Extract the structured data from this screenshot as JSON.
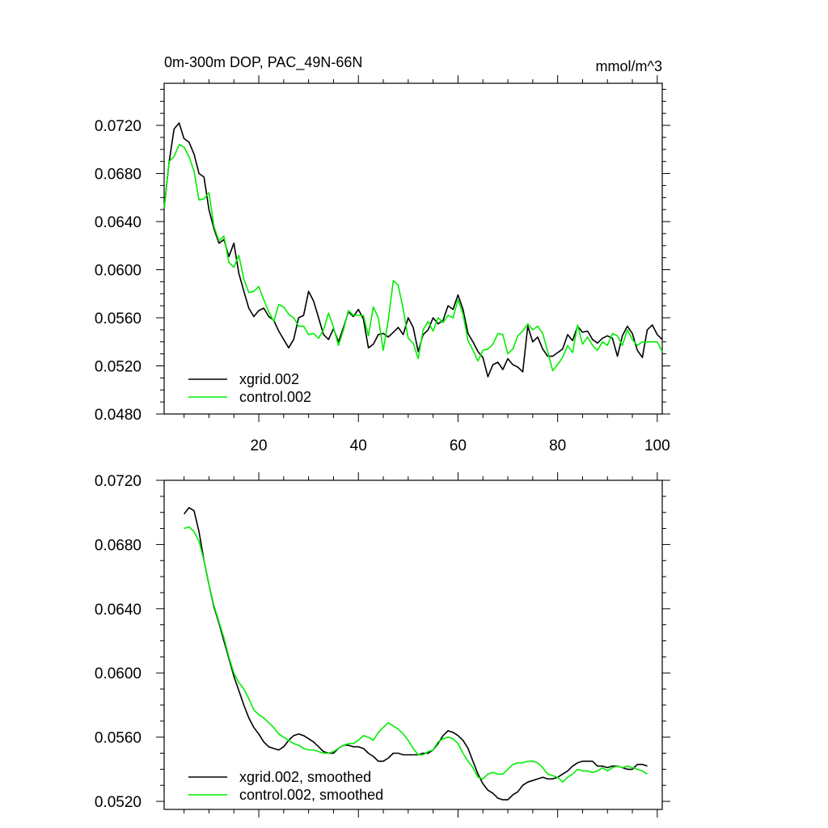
{
  "chart_data": [
    {
      "type": "line",
      "title": "0m-300m DOP, PAC_49N-66N",
      "units": "mmol/m^3",
      "xlim": [
        1,
        101
      ],
      "ylim": [
        0.048,
        0.0755
      ],
      "x_ticks": [
        20,
        40,
        60,
        80,
        100
      ],
      "x_tick_labels": [
        "20",
        "40",
        "60",
        "80",
        "100"
      ],
      "y_ticks": [
        0.048,
        0.052,
        0.056,
        0.06,
        0.064,
        0.068,
        0.072
      ],
      "y_tick_labels": [
        "0.0480",
        "0.0520",
        "0.0560",
        "0.0600",
        "0.0640",
        "0.0680",
        "0.0720"
      ],
      "legend_position": "bottom-left",
      "series": [
        {
          "name": "xgrid.002",
          "color": "#000000",
          "x": [
            1,
            2,
            3,
            4,
            5,
            6,
            7,
            8,
            9,
            10,
            11,
            12,
            13,
            14,
            15,
            16,
            17,
            18,
            19,
            20,
            21,
            22,
            23,
            24,
            25,
            26,
            27,
            28,
            29,
            30,
            31,
            32,
            33,
            34,
            35,
            36,
            37,
            38,
            39,
            40,
            41,
            42,
            43,
            44,
            45,
            46,
            47,
            48,
            49,
            50,
            51,
            52,
            53,
            54,
            55,
            56,
            57,
            58,
            59,
            60,
            61,
            62,
            63,
            64,
            65,
            66,
            67,
            68,
            69,
            70,
            71,
            72,
            73,
            74,
            75,
            76,
            77,
            78,
            79,
            80,
            81,
            82,
            83,
            84,
            85,
            86,
            87,
            88,
            89,
            90,
            91,
            92,
            93,
            94,
            95,
            96,
            97,
            98,
            99,
            100,
            101
          ],
          "values": [
            0.0651,
            0.069,
            0.0717,
            0.0722,
            0.0709,
            0.0706,
            0.0696,
            0.068,
            0.0677,
            0.065,
            0.0634,
            0.0622,
            0.0625,
            0.0611,
            0.0622,
            0.0597,
            0.0582,
            0.0568,
            0.0561,
            0.0566,
            0.0568,
            0.0561,
            0.0558,
            0.0549,
            0.0542,
            0.0535,
            0.0542,
            0.056,
            0.0562,
            0.0582,
            0.0574,
            0.056,
            0.0546,
            0.0542,
            0.0551,
            0.054,
            0.0552,
            0.0565,
            0.0561,
            0.0567,
            0.0559,
            0.0535,
            0.0538,
            0.0546,
            0.0547,
            0.0544,
            0.0548,
            0.0552,
            0.0546,
            0.056,
            0.0552,
            0.0532,
            0.0546,
            0.055,
            0.056,
            0.0555,
            0.0558,
            0.057,
            0.0567,
            0.0579,
            0.0567,
            0.0547,
            0.054,
            0.0532,
            0.0527,
            0.0511,
            0.0521,
            0.0523,
            0.0517,
            0.0526,
            0.0521,
            0.0519,
            0.0515,
            0.0553,
            0.054,
            0.0544,
            0.0534,
            0.0528,
            0.0528,
            0.0531,
            0.0534,
            0.0546,
            0.0541,
            0.0553,
            0.0548,
            0.0549,
            0.0542,
            0.0539,
            0.0543,
            0.0545,
            0.0543,
            0.0528,
            0.0545,
            0.0553,
            0.0547,
            0.0533,
            0.0527,
            0.055,
            0.0554,
            0.0546,
            0.0542
          ]
        },
        {
          "name": "control.002",
          "color": "#00ee00",
          "x": [
            1,
            2,
            3,
            4,
            5,
            6,
            7,
            8,
            9,
            10,
            11,
            12,
            13,
            14,
            15,
            16,
            17,
            18,
            19,
            20,
            21,
            22,
            23,
            24,
            25,
            26,
            27,
            28,
            29,
            30,
            31,
            32,
            33,
            34,
            35,
            36,
            37,
            38,
            39,
            40,
            41,
            42,
            43,
            44,
            45,
            46,
            47,
            48,
            49,
            50,
            51,
            52,
            53,
            54,
            55,
            56,
            57,
            58,
            59,
            60,
            61,
            62,
            63,
            64,
            65,
            66,
            67,
            68,
            69,
            70,
            71,
            72,
            73,
            74,
            75,
            76,
            77,
            78,
            79,
            80,
            81,
            82,
            83,
            84,
            85,
            86,
            87,
            88,
            89,
            90,
            91,
            92,
            93,
            94,
            95,
            96,
            97,
            98,
            99,
            100,
            101
          ],
          "values": [
            0.0651,
            0.069,
            0.0694,
            0.0704,
            0.0702,
            0.0694,
            0.0682,
            0.0658,
            0.0659,
            0.0664,
            0.0636,
            0.0624,
            0.0628,
            0.0606,
            0.0602,
            0.0612,
            0.0592,
            0.0581,
            0.0582,
            0.0586,
            0.0575,
            0.0565,
            0.0557,
            0.0571,
            0.0569,
            0.0563,
            0.056,
            0.0553,
            0.0553,
            0.0546,
            0.0547,
            0.0543,
            0.055,
            0.0564,
            0.0552,
            0.0537,
            0.055,
            0.0566,
            0.0562,
            0.0562,
            0.0562,
            0.0545,
            0.0569,
            0.056,
            0.0533,
            0.0558,
            0.0591,
            0.0587,
            0.0567,
            0.0543,
            0.0539,
            0.0526,
            0.055,
            0.0557,
            0.0549,
            0.056,
            0.0556,
            0.0562,
            0.056,
            0.0575,
            0.0563,
            0.0541,
            0.0533,
            0.0524,
            0.0533,
            0.0534,
            0.0538,
            0.0547,
            0.0546,
            0.053,
            0.0534,
            0.0545,
            0.0549,
            0.0555,
            0.055,
            0.0553,
            0.0547,
            0.0532,
            0.0516,
            0.0521,
            0.0527,
            0.0537,
            0.0531,
            0.0554,
            0.0538,
            0.0544,
            0.0537,
            0.0533,
            0.054,
            0.0537,
            0.0547,
            0.0545,
            0.0537,
            0.055,
            0.0542,
            0.0537,
            0.054,
            0.054,
            0.054,
            0.054,
            0.0532
          ]
        }
      ]
    },
    {
      "type": "line",
      "xlim": [
        1,
        101
      ],
      "ylim": [
        0.0515,
        0.072
      ],
      "x_ticks": [
        20,
        40,
        60,
        80,
        100
      ],
      "x_tick_labels": [],
      "y_ticks": [
        0.052,
        0.056,
        0.06,
        0.064,
        0.068,
        0.072
      ],
      "y_tick_labels": [
        "0.0520",
        "0.0560",
        "0.0600",
        "0.0640",
        "0.0680",
        "0.0720"
      ],
      "legend_position": "bottom-left",
      "series": [
        {
          "name": "xgrid.002, smoothed",
          "color": "#000000",
          "x": [
            5,
            6,
            7,
            8,
            9,
            10,
            11,
            12,
            13,
            14,
            15,
            16,
            17,
            18,
            19,
            20,
            21,
            22,
            23,
            24,
            25,
            26,
            27,
            28,
            29,
            30,
            31,
            32,
            33,
            34,
            35,
            36,
            37,
            38,
            39,
            40,
            41,
            42,
            43,
            44,
            45,
            46,
            47,
            48,
            49,
            50,
            51,
            52,
            53,
            54,
            55,
            56,
            57,
            58,
            59,
            60,
            61,
            62,
            63,
            64,
            65,
            66,
            67,
            68,
            69,
            70,
            71,
            72,
            73,
            74,
            75,
            76,
            77,
            78,
            79,
            80,
            81,
            82,
            83,
            84,
            85,
            86,
            87,
            88,
            89,
            90,
            91,
            92,
            93,
            94,
            95,
            96,
            97,
            98
          ],
          "values": [
            0.0699,
            0.0703,
            0.0701,
            0.0688,
            0.067,
            0.0655,
            0.0641,
            0.0631,
            0.062,
            0.0609,
            0.0598,
            0.0589,
            0.058,
            0.0572,
            0.0566,
            0.0562,
            0.0557,
            0.0554,
            0.0553,
            0.0552,
            0.0554,
            0.0558,
            0.0561,
            0.0562,
            0.0561,
            0.0559,
            0.0557,
            0.0554,
            0.0551,
            0.055,
            0.055,
            0.0553,
            0.0555,
            0.0555,
            0.0554,
            0.0554,
            0.0553,
            0.055,
            0.0548,
            0.0545,
            0.0545,
            0.0547,
            0.055,
            0.055,
            0.0549,
            0.0549,
            0.0549,
            0.0549,
            0.055,
            0.055,
            0.0552,
            0.0556,
            0.0561,
            0.0564,
            0.0563,
            0.0561,
            0.0558,
            0.0553,
            0.0545,
            0.0537,
            0.0531,
            0.0527,
            0.0525,
            0.0522,
            0.0521,
            0.0521,
            0.0524,
            0.0526,
            0.053,
            0.0532,
            0.0533,
            0.0534,
            0.0535,
            0.0534,
            0.0534,
            0.0535,
            0.0537,
            0.0539,
            0.0542,
            0.0544,
            0.0545,
            0.0545,
            0.0545,
            0.0542,
            0.0542,
            0.0541,
            0.0542,
            0.0542,
            0.0541,
            0.054,
            0.054,
            0.0543,
            0.0543,
            0.0542
          ]
        },
        {
          "name": "control.002, smoothed",
          "color": "#00ee00",
          "x": [
            5,
            6,
            7,
            8,
            9,
            10,
            11,
            12,
            13,
            14,
            15,
            16,
            17,
            18,
            19,
            20,
            21,
            22,
            23,
            24,
            25,
            26,
            27,
            28,
            29,
            30,
            31,
            32,
            33,
            34,
            35,
            36,
            37,
            38,
            39,
            40,
            41,
            42,
            43,
            44,
            45,
            46,
            47,
            48,
            49,
            50,
            51,
            52,
            53,
            54,
            55,
            56,
            57,
            58,
            59,
            60,
            61,
            62,
            63,
            64,
            65,
            66,
            67,
            68,
            69,
            70,
            71,
            72,
            73,
            74,
            75,
            76,
            77,
            78,
            79,
            80,
            81,
            82,
            83,
            84,
            85,
            86,
            87,
            88,
            89,
            90,
            91,
            92,
            93,
            94,
            95,
            96,
            97,
            98
          ],
          "values": [
            0.069,
            0.0691,
            0.0688,
            0.0682,
            0.067,
            0.0655,
            0.0642,
            0.0632,
            0.0622,
            0.061,
            0.06,
            0.0594,
            0.059,
            0.0584,
            0.0577,
            0.0574,
            0.0572,
            0.0569,
            0.0566,
            0.0562,
            0.056,
            0.0558,
            0.0556,
            0.0555,
            0.0553,
            0.0552,
            0.0552,
            0.0551,
            0.055,
            0.055,
            0.0551,
            0.0553,
            0.0555,
            0.0556,
            0.0556,
            0.0558,
            0.0561,
            0.056,
            0.0558,
            0.0563,
            0.0566,
            0.0569,
            0.0567,
            0.0565,
            0.0562,
            0.0558,
            0.0553,
            0.0549,
            0.0549,
            0.0551,
            0.0552,
            0.0557,
            0.0559,
            0.056,
            0.0559,
            0.0556,
            0.055,
            0.0545,
            0.0541,
            0.0535,
            0.0534,
            0.0537,
            0.0538,
            0.0537,
            0.0537,
            0.054,
            0.0543,
            0.0544,
            0.0544,
            0.0545,
            0.0545,
            0.0544,
            0.0541,
            0.0537,
            0.0536,
            0.0535,
            0.0532,
            0.0535,
            0.0537,
            0.054,
            0.0539,
            0.0539,
            0.0538,
            0.0539,
            0.0541,
            0.0539,
            0.0541,
            0.0542,
            0.0541,
            0.0542,
            0.0541,
            0.054,
            0.0539,
            0.0537
          ]
        }
      ]
    }
  ]
}
